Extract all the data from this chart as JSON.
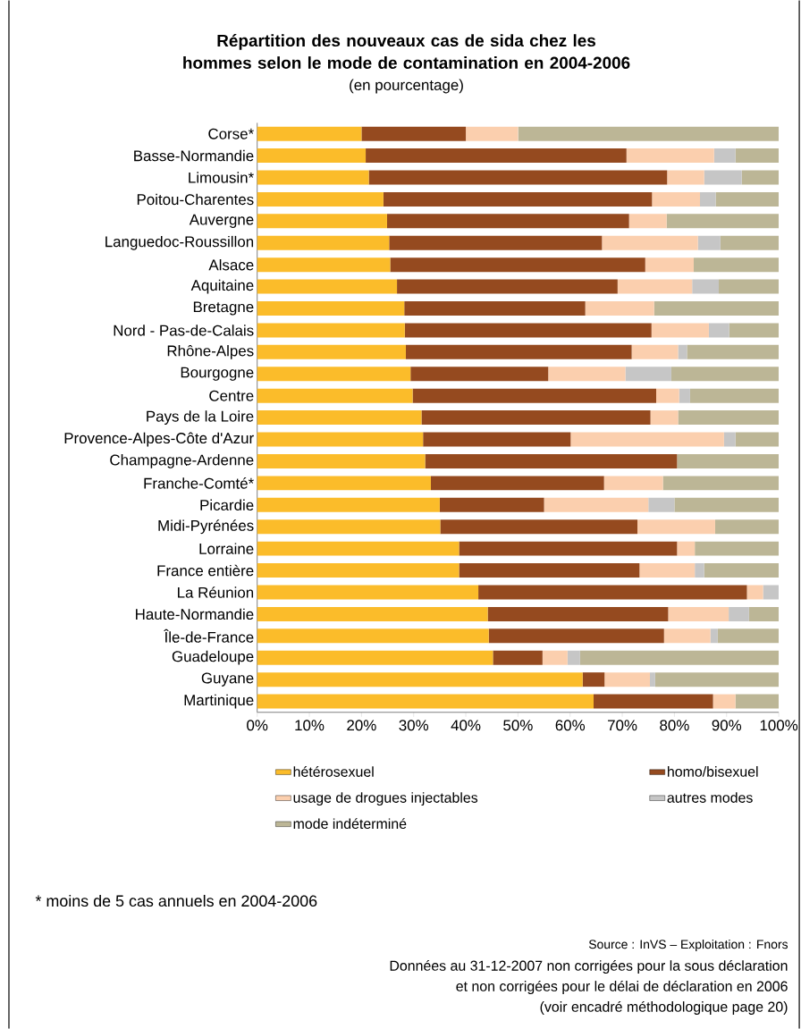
{
  "chart_data": {
    "type": "bar",
    "orientation": "horizontal",
    "stacked": true,
    "title": "Répartition des nouveaux cas de sida chez les hommes selon le mode de contamination en 2004-2006",
    "subtitle": "(en pourcentage)",
    "categories": [
      "Corse*",
      "Basse-Normandie",
      "Limousin*",
      "Poitou-Charentes",
      "Auvergne",
      "Languedoc-Roussillon",
      "Alsace",
      "Aquitaine",
      "Bretagne",
      "Nord - Pas-de-Calais",
      "Rhône-Alpes",
      "Bourgogne",
      "Centre",
      "Pays de la Loire",
      "Provence-Alpes-Côte d'Azur",
      "Champagne-Ardenne",
      "Franche-Comté*",
      "Picardie",
      "Midi-Pyrénées",
      "Lorraine",
      "France entière",
      "La Réunion",
      "Haute-Normandie",
      "Île-de-France",
      "Guadeloupe",
      "Guyane",
      "Martinique"
    ],
    "series": [
      {
        "name": "hétérosexuel",
        "color": "#fbbc2a",
        "values": [
          20,
          20.8,
          21.4,
          24.2,
          24.9,
          25.3,
          25.5,
          26.8,
          28.2,
          28.3,
          28.5,
          29.4,
          29.8,
          31.5,
          31.8,
          32.2,
          33.3,
          35,
          35.1,
          38.7,
          38.7,
          42.4,
          44.2,
          44.4,
          45.2,
          62.4,
          64.5
        ]
      },
      {
        "name": "homo/bisexuel",
        "color": "#954a1f",
        "values": [
          20,
          50,
          57.2,
          51.5,
          46.4,
          40.8,
          48.9,
          42.3,
          34.7,
          47.3,
          43.3,
          26.4,
          46.7,
          43.9,
          28.3,
          48.3,
          33.2,
          20,
          37.8,
          41.8,
          34.6,
          51.5,
          34.6,
          33.6,
          9.5,
          4.2,
          22.9
        ]
      },
      {
        "name": "usage de drogues injectables",
        "color": "#fbcfae",
        "values": [
          10,
          16.8,
          7.1,
          9.2,
          7.2,
          18.4,
          9.3,
          14.3,
          13.2,
          11,
          8.9,
          14.8,
          4.4,
          5.3,
          29.4,
          0,
          11.3,
          20,
          14.9,
          3.4,
          10.6,
          3.1,
          11.6,
          8.9,
          4.8,
          8.7,
          4.3
        ]
      },
      {
        "name": "autres modes",
        "color": "#c6c6c6",
        "values": [
          0,
          4.1,
          7.2,
          3,
          0,
          4.3,
          0,
          5.1,
          0,
          3.9,
          1.7,
          8.8,
          2.1,
          0,
          2.2,
          0,
          0,
          5,
          0,
          0,
          1.8,
          3,
          3.9,
          1.4,
          2.4,
          1,
          0
        ]
      },
      {
        "name": "mode indéterminé",
        "color": "#bcb696",
        "values": [
          50,
          8.3,
          7.1,
          12.1,
          21.5,
          11.2,
          16.3,
          11.5,
          23.9,
          9.5,
          17.6,
          20.6,
          17,
          19.3,
          8.3,
          19.5,
          22.2,
          20,
          12.2,
          16.1,
          14.3,
          0,
          5.7,
          11.7,
          38.1,
          23.7,
          8.3
        ]
      }
    ],
    "xlim": [
      0,
      100
    ],
    "xticks": [
      {
        "value": 0,
        "label": "0%"
      },
      {
        "value": 10,
        "label": "10%"
      },
      {
        "value": 20,
        "label": "20%"
      },
      {
        "value": 30,
        "label": "30%"
      },
      {
        "value": 40,
        "label": "40%"
      },
      {
        "value": 50,
        "label": "50%"
      },
      {
        "value": 60,
        "label": "60%"
      },
      {
        "value": 70,
        "label": "70%"
      },
      {
        "value": 80,
        "label": "80%"
      },
      {
        "value": 90,
        "label": "90%"
      },
      {
        "value": 100,
        "label": "100%"
      }
    ],
    "legend": "bottom",
    "grid": false,
    "annotations": [
      "* moins de 5 cas annuels en 2004-2006",
      "Source :  InVS – Exploitation : Fnors",
      "Données au 31-12-2007 non corrigées pour la sous déclaration",
      "et non corrigées pour le délai de déclaration en 2006",
      "(voir encadré méthodologique page 20)"
    ]
  }
}
